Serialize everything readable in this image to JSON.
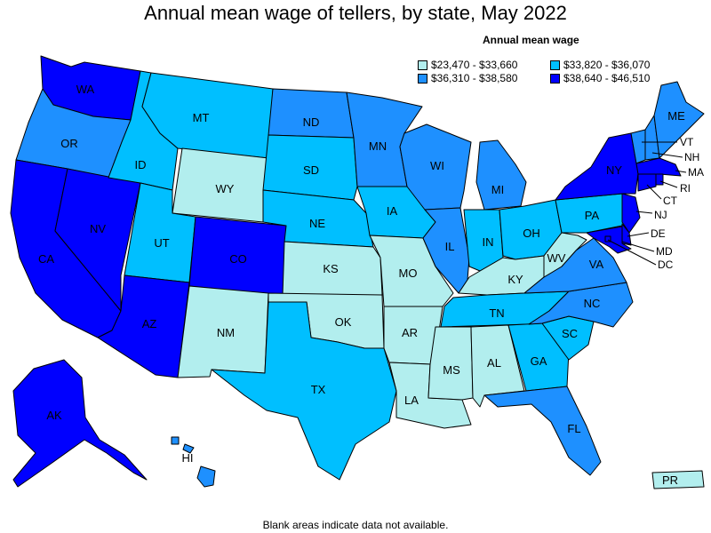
{
  "title": "Annual mean wage of tellers, by state, May 2022",
  "legend": {
    "title": "Annual mean wage",
    "items": [
      {
        "label": "$23,470 - $33,660",
        "color": "#b2eeee"
      },
      {
        "label": "$33,820 - $36,070",
        "color": "#00bfff"
      },
      {
        "label": "$36,310 - $38,580",
        "color": "#1e90ff"
      },
      {
        "label": "$38,640 - $46,510",
        "color": "#0000ff"
      }
    ]
  },
  "footnote": "Blank areas indicate data not available.",
  "states": {
    "WA": {
      "label": "WA",
      "class": 3
    },
    "OR": {
      "label": "OR",
      "class": 2
    },
    "CA": {
      "label": "CA",
      "class": 3
    },
    "NV": {
      "label": "NV",
      "class": 3
    },
    "ID": {
      "label": "ID",
      "class": 1
    },
    "MT": {
      "label": "MT",
      "class": 1
    },
    "WY": {
      "label": "WY",
      "class": 0
    },
    "UT": {
      "label": "UT",
      "class": 1
    },
    "CO": {
      "label": "CO",
      "class": 3
    },
    "AZ": {
      "label": "AZ",
      "class": 3
    },
    "NM": {
      "label": "NM",
      "class": 0
    },
    "ND": {
      "label": "ND",
      "class": 2
    },
    "SD": {
      "label": "SD",
      "class": 1
    },
    "NE": {
      "label": "NE",
      "class": 1
    },
    "KS": {
      "label": "KS",
      "class": 0
    },
    "OK": {
      "label": "OK",
      "class": 0
    },
    "TX": {
      "label": "TX",
      "class": 1
    },
    "MN": {
      "label": "MN",
      "class": 2
    },
    "IA": {
      "label": "IA",
      "class": 1
    },
    "MO": {
      "label": "MO",
      "class": 0
    },
    "AR": {
      "label": "AR",
      "class": 0
    },
    "LA": {
      "label": "LA",
      "class": 0
    },
    "WI": {
      "label": "WI",
      "class": 2
    },
    "IL": {
      "label": "IL",
      "class": 2
    },
    "MI": {
      "label": "MI",
      "class": 2
    },
    "IN": {
      "label": "IN",
      "class": 1
    },
    "OH": {
      "label": "OH",
      "class": 1
    },
    "KY": {
      "label": "KY",
      "class": 0
    },
    "TN": {
      "label": "TN",
      "class": 1
    },
    "MS": {
      "label": "MS",
      "class": 0
    },
    "AL": {
      "label": "AL",
      "class": 0
    },
    "GA": {
      "label": "GA",
      "class": 1
    },
    "FL": {
      "label": "FL",
      "class": 2
    },
    "SC": {
      "label": "SC",
      "class": 1
    },
    "NC": {
      "label": "NC",
      "class": 2
    },
    "VA": {
      "label": "VA",
      "class": 2
    },
    "WV": {
      "label": "WV",
      "class": 0
    },
    "PA": {
      "label": "PA",
      "class": 1
    },
    "NY": {
      "label": "NY",
      "class": 3
    },
    "VT": {
      "label": "VT",
      "class": 2
    },
    "NH": {
      "label": "NH",
      "class": 2
    },
    "ME": {
      "label": "ME",
      "class": 2
    },
    "MA": {
      "label": "MA",
      "class": 3
    },
    "RI": {
      "label": "RI",
      "class": 3
    },
    "CT": {
      "label": "CT",
      "class": 3
    },
    "NJ": {
      "label": "NJ",
      "class": 3
    },
    "DE": {
      "label": "DE",
      "class": 3
    },
    "MD": {
      "label": "MD",
      "class": 3
    },
    "DC": {
      "label": "DC",
      "class": 3
    },
    "AK": {
      "label": "AK",
      "class": 3
    },
    "HI": {
      "label": "HI",
      "class": 2
    },
    "PR": {
      "label": "PR",
      "class": 0
    }
  }
}
